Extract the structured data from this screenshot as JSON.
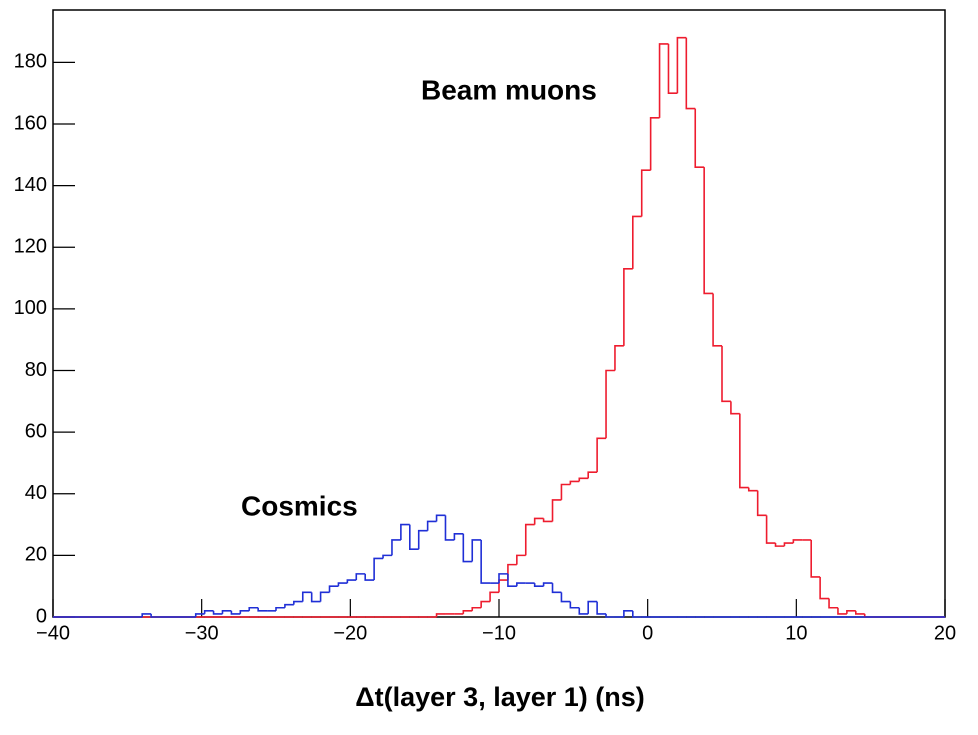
{
  "chart_data": {
    "type": "histogram",
    "x_label": "Δt(layer 3, layer 1) (ns)",
    "annotations": [
      "Beam muons",
      "Cosmics"
    ],
    "bins": [
      -40,
      -39.4,
      -38.8,
      -38.2,
      -37.6,
      -37,
      -36.4,
      -35.8,
      -35.2,
      -34.6,
      -34,
      -33.4,
      -32.8,
      -32.2,
      -31.6,
      -31,
      -30.4,
      -29.8,
      -29.2,
      -28.6,
      -28,
      -27.4,
      -26.8,
      -26.2,
      -25.6,
      -25,
      -24.4,
      -23.8,
      -23.2,
      -22.6,
      -22,
      -21.4,
      -20.8,
      -20.2,
      -19.6,
      -19,
      -18.4,
      -17.8,
      -17.2,
      -16.6,
      -16,
      -15.4,
      -14.8,
      -14.2,
      -13.6,
      -13,
      -12.4,
      -11.8,
      -11.2,
      -10.6,
      -10,
      -9.4,
      -8.8,
      -8.2,
      -7.6,
      -7,
      -6.4,
      -5.8,
      -5.2,
      -4.6,
      -4,
      -3.4,
      -2.8,
      -2.2,
      -1.6,
      -1,
      -0.4,
      0.2,
      0.8,
      1.4,
      2,
      2.6,
      3.2,
      3.8,
      4.4,
      5,
      5.6,
      6.2,
      6.8,
      7.4,
      8,
      8.6,
      9.2,
      9.8,
      10.4,
      11,
      11.6,
      12.2,
      12.8,
      13.4,
      14,
      14.6,
      15.2,
      15.8,
      16.4,
      17,
      17.6,
      18.2,
      18.8,
      19.4,
      20
    ],
    "series": [
      {
        "name": "Beam muons",
        "color": "#ee1c2e",
        "values": [
          0,
          0,
          0,
          0,
          0,
          0,
          0,
          0,
          0,
          0,
          0,
          0,
          0,
          0,
          0,
          0,
          0,
          0,
          0,
          0,
          0,
          0,
          0,
          0,
          0,
          0,
          0,
          0,
          0,
          0,
          0,
          0,
          0,
          0,
          0,
          0,
          0,
          0,
          0,
          0,
          0,
          0,
          0,
          1,
          1,
          1,
          2,
          3,
          5,
          8,
          12,
          17,
          20,
          30,
          32,
          31,
          38,
          43,
          44,
          45,
          47,
          58,
          80,
          88,
          113,
          130,
          145,
          162,
          186,
          170,
          188,
          165,
          146,
          105,
          88,
          70,
          66,
          42,
          41,
          33,
          24,
          23,
          24,
          25,
          25,
          13,
          6,
          3,
          1,
          2,
          1,
          0,
          0,
          0,
          0,
          0,
          0,
          0,
          0,
          0
        ]
      },
      {
        "name": "Cosmics",
        "color": "#1f2fd6",
        "values": [
          0,
          0,
          0,
          0,
          0,
          0,
          0,
          0,
          0,
          0,
          1,
          0,
          0,
          0,
          0,
          0,
          1,
          2,
          1,
          2,
          1,
          2,
          3,
          2,
          2,
          3,
          4,
          5,
          8,
          5,
          8,
          10,
          11,
          12,
          14,
          12,
          19,
          20,
          25,
          30,
          22,
          28,
          31,
          33,
          25,
          27,
          18,
          25,
          11,
          11,
          14,
          10,
          11,
          11,
          10,
          11,
          8,
          5,
          3,
          1,
          5,
          1,
          0,
          0,
          2,
          0,
          0,
          0,
          0,
          0,
          0,
          0,
          0,
          0,
          0,
          0,
          0,
          0,
          0,
          0,
          0,
          0,
          0,
          0,
          0,
          0,
          0,
          0,
          0,
          0,
          0,
          0,
          0,
          0,
          0,
          0,
          0,
          0,
          0,
          0
        ]
      }
    ],
    "xlim": [
      -40,
      20
    ],
    "xticks": [
      {
        "value": -40,
        "label": "−40"
      },
      {
        "value": -30,
        "label": "−30"
      },
      {
        "value": -20,
        "label": "−20"
      },
      {
        "value": -10,
        "label": "−10"
      },
      0,
      10,
      20
    ],
    "ylim": [
      0,
      197
    ],
    "yticks": [
      0,
      20,
      40,
      60,
      80,
      100,
      120,
      140,
      160,
      180
    ]
  }
}
